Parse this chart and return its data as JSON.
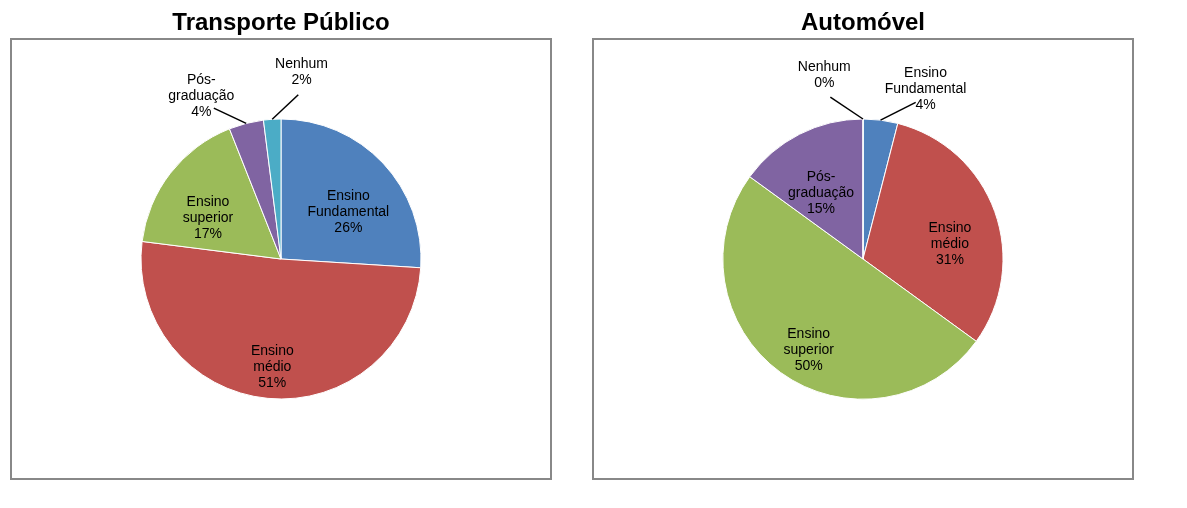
{
  "chart_data": [
    {
      "type": "pie",
      "title": "Transporte Público",
      "categories": [
        "Ensino Fundamental",
        "Ensino médio",
        "Ensino superior",
        "Pós-graduação",
        "Nenhum"
      ],
      "values": [
        26,
        51,
        17,
        4,
        2
      ],
      "value_labels": [
        "26%",
        "51%",
        "17%",
        "4%",
        "2%"
      ],
      "colors": [
        "#4f81bd",
        "#c0504d",
        "#9bbb59",
        "#8064a2",
        "#4bacc6"
      ]
    },
    {
      "type": "pie",
      "title": "Automóvel",
      "categories": [
        "Ensino Fundamental",
        "Ensino médio",
        "Ensino superior",
        "Pós-graduação",
        "Nenhum"
      ],
      "values": [
        4,
        31,
        50,
        15,
        0
      ],
      "value_labels": [
        "4%",
        "31%",
        "50%",
        "15%",
        "0%"
      ],
      "colors": [
        "#4f81bd",
        "#c0504d",
        "#9bbb59",
        "#8064a2",
        "#4bacc6"
      ]
    }
  ]
}
